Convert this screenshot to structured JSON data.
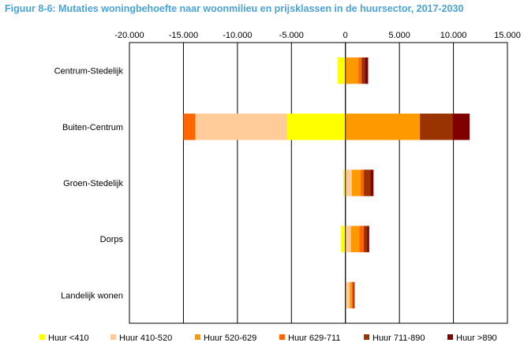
{
  "title": "Figuur 8-6: Mutaties woningbehoefte naar woonmilieu en prijsklassen in de huursector, 2017-2030",
  "colors": {
    "Huur <410": "#ffff00",
    "Huur 410-520": "#ffcc99",
    "Huur 520-629": "#ff9900",
    "Huur 629-711": "#ff6600",
    "Huur 711-890": "#993300",
    "Huur >890": "#800000"
  },
  "chart_data": {
    "type": "bar",
    "orientation": "horizontal",
    "stacked": true,
    "xlim": [
      -20000,
      15000
    ],
    "x_ticks": [
      -20000,
      -15000,
      -10000,
      -5000,
      0,
      5000,
      10000,
      15000
    ],
    "x_tick_labels": [
      "-20.000",
      "-15.000",
      "-10.000",
      "-5.000",
      "0",
      "5.000",
      "10.000",
      "15.000"
    ],
    "x_axis_position": "top",
    "grid": "vertical",
    "legend_position": "bottom",
    "categories": [
      "Centrum-Stedelijk",
      "Buiten-Centrum",
      "Groen-Stedelijk",
      "Dorps",
      "Landelijk wonen"
    ],
    "series": [
      {
        "name": "Huur <410",
        "values": [
          -700,
          -5400,
          -200,
          -400,
          0
        ]
      },
      {
        "name": "Huur 410-520",
        "values": [
          0,
          -8500,
          600,
          500,
          400
        ]
      },
      {
        "name": "Huur 520-629",
        "values": [
          1200,
          6900,
          800,
          800,
          200
        ]
      },
      {
        "name": "Huur 629-711",
        "values": [
          300,
          -1100,
          300,
          400,
          100
        ]
      },
      {
        "name": "Huur 711-890",
        "values": [
          300,
          3000,
          600,
          300,
          100
        ]
      },
      {
        "name": "Huur >890",
        "values": [
          300,
          1600,
          300,
          200,
          50
        ]
      }
    ]
  }
}
